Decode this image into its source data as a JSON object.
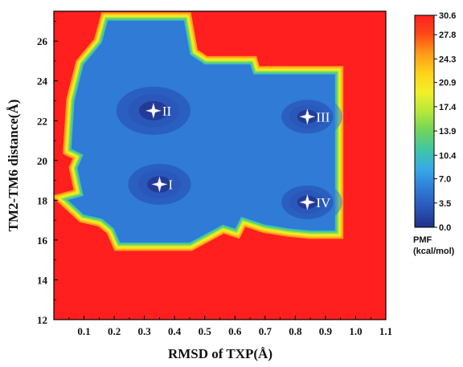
{
  "chart_data": {
    "type": "heatmap",
    "title": "",
    "xlabel": "RMSD of TXP(Å)",
    "ylabel": "TM2-TM6 distance(Å)",
    "xlim": [
      0.0,
      1.1
    ],
    "ylim": [
      12,
      27.5
    ],
    "x_ticks": [
      0.1,
      0.2,
      0.3,
      0.4,
      0.5,
      0.6,
      0.7,
      0.8,
      0.9,
      1.0,
      1.1
    ],
    "y_ticks": [
      12,
      14,
      16,
      18,
      20,
      22,
      24,
      26
    ],
    "colorbar": {
      "title_lines": [
        "PMF",
        "(kcal/mol)"
      ],
      "ticks": [
        "30.6",
        "27.8",
        "24.3",
        "20.9",
        "17.4",
        "13.9",
        "10.4",
        "7.0",
        "3.5",
        "0.0"
      ],
      "min": 0.0,
      "max": 30.6
    },
    "background_value": 30.6,
    "basins": [
      {
        "label": "II",
        "x": 0.33,
        "y": 22.5,
        "value": 0.2
      },
      {
        "label": "I",
        "x": 0.35,
        "y": 18.8,
        "value": 2.0
      },
      {
        "label": "III",
        "x": 0.84,
        "y": 22.2,
        "value": 3.0
      },
      {
        "label": "IV",
        "x": 0.84,
        "y": 17.9,
        "value": 2.8
      }
    ],
    "low_energy_regions": [
      {
        "name": "main-basin",
        "polygon": [
          [
            0.1,
            24.8
          ],
          [
            0.16,
            25.9
          ],
          [
            0.18,
            27.0
          ],
          [
            0.43,
            27.0
          ],
          [
            0.45,
            25.3
          ],
          [
            0.5,
            24.8
          ],
          [
            0.65,
            24.8
          ],
          [
            0.66,
            24.3
          ],
          [
            0.93,
            24.3
          ],
          [
            0.93,
            19.8
          ],
          [
            0.63,
            19.8
          ],
          [
            0.61,
            20.6
          ],
          [
            0.93,
            20.8
          ],
          [
            0.93,
            16.5
          ],
          [
            0.85,
            16.5
          ],
          [
            0.78,
            16.6
          ],
          [
            0.7,
            16.8
          ],
          [
            0.62,
            17.2
          ],
          [
            0.6,
            16.6
          ],
          [
            0.56,
            16.8
          ],
          [
            0.45,
            15.9
          ],
          [
            0.22,
            15.9
          ],
          [
            0.2,
            16.6
          ],
          [
            0.16,
            17.1
          ],
          [
            0.1,
            17.3
          ],
          [
            0.05,
            18.0
          ],
          [
            0.1,
            18.2
          ],
          [
            0.08,
            19.6
          ],
          [
            0.1,
            20.3
          ],
          [
            0.06,
            20.6
          ],
          [
            0.07,
            23.0
          ]
        ]
      }
    ],
    "annotations": [
      {
        "text": "II",
        "x": 0.33,
        "y": 22.5
      },
      {
        "text": "I",
        "x": 0.35,
        "y": 18.8
      },
      {
        "text": "III",
        "x": 0.84,
        "y": 22.2
      },
      {
        "text": "IV",
        "x": 0.84,
        "y": 17.9
      }
    ],
    "grid": false,
    "legend": "right-colorbar"
  },
  "colors": {
    "background": "#ffffff",
    "high": "#ff1f1f",
    "palette": [
      "#ff1f1f",
      "#ff4a16",
      "#ff9a1a",
      "#ffd21a",
      "#f2f02a",
      "#b5e83a",
      "#6fd45a",
      "#3fc6a8",
      "#38a8e8",
      "#2f7bd6",
      "#2a56b8",
      "#22308a"
    ]
  }
}
